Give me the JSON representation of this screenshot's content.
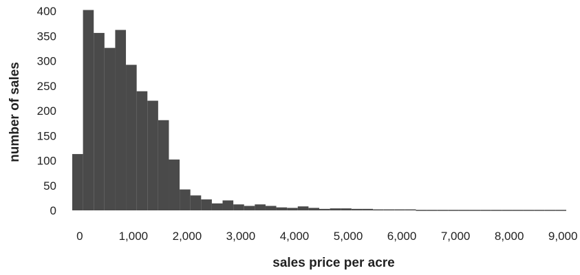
{
  "chart_data": {
    "type": "bar",
    "title": "",
    "xlabel": "sales price per acre",
    "ylabel": "number of sales",
    "bin_width": 200,
    "bin_starts": [
      -100,
      100,
      300,
      500,
      700,
      900,
      1100,
      1300,
      1500,
      1700,
      1900,
      2100,
      2300,
      2500,
      2700,
      2900,
      3100,
      3300,
      3500,
      3700,
      3900,
      4100,
      4300,
      4500,
      4700,
      4900,
      5100,
      5300,
      5500,
      5700,
      5900,
      6100,
      6300,
      6500,
      6700,
      6900,
      7100,
      7300,
      7500,
      7700,
      7900,
      8100,
      8300,
      8500,
      8700,
      8900
    ],
    "values": [
      113,
      402,
      356,
      326,
      362,
      292,
      239,
      220,
      181,
      102,
      42,
      30,
      22,
      14,
      20,
      12,
      9,
      12,
      9,
      6,
      5,
      8,
      5,
      3,
      4,
      4,
      3,
      3,
      2,
      2,
      2,
      2,
      1,
      1,
      1,
      1,
      1,
      1,
      1,
      1,
      1,
      1,
      1,
      1,
      1,
      1
    ],
    "xlim": [
      -100,
      9100
    ],
    "ylim": [
      0,
      400
    ],
    "x_ticks": [
      0,
      1000,
      2000,
      3000,
      4000,
      5000,
      6000,
      7000,
      8000,
      9000
    ],
    "x_tick_labels": [
      "0",
      "1,000",
      "2,000",
      "3,000",
      "4,000",
      "5,000",
      "6,000",
      "7,000",
      "8,000",
      "9,000"
    ],
    "y_ticks": [
      0,
      50,
      100,
      150,
      200,
      250,
      300,
      350,
      400
    ],
    "y_tick_labels": [
      "0",
      "50",
      "100",
      "150",
      "200",
      "250",
      "300",
      "350",
      "400"
    ],
    "bar_color": "#4a4a4a",
    "grid": false,
    "legend": "none"
  }
}
